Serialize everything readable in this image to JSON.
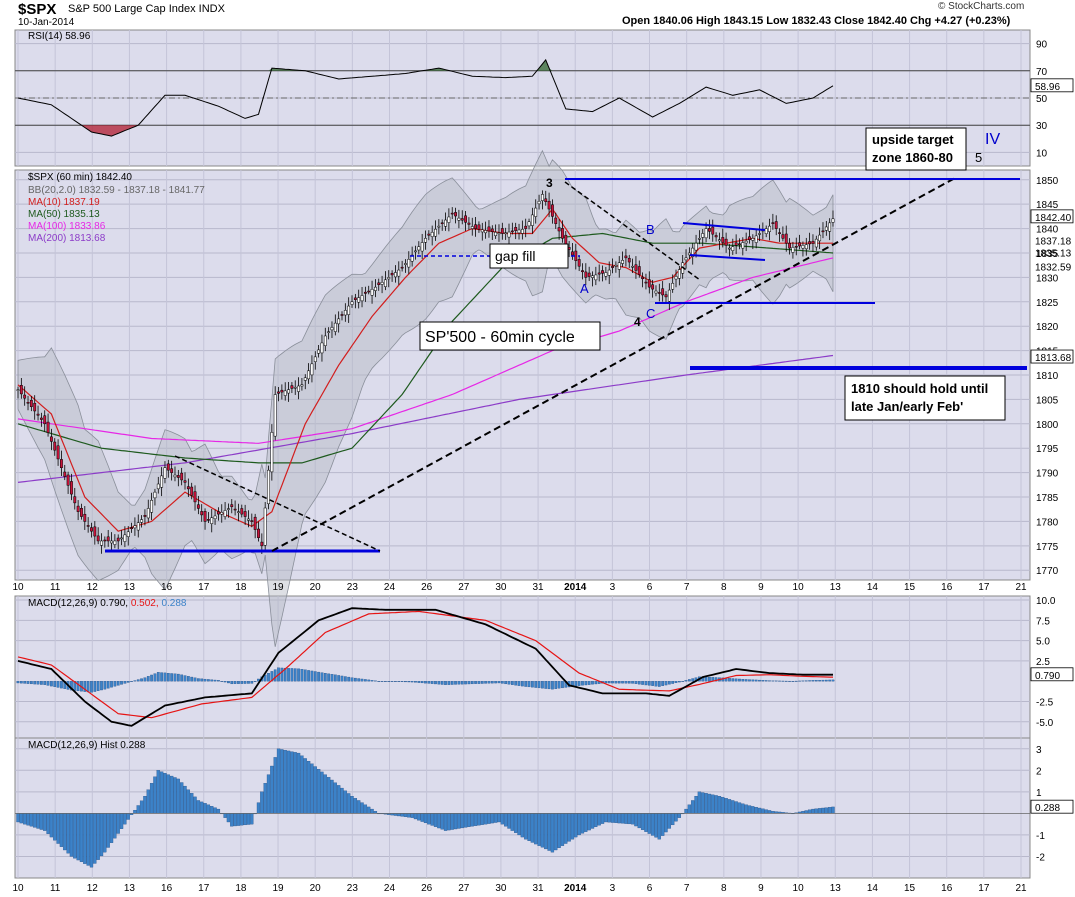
{
  "header": {
    "symbol": "$SPX",
    "description": "S&P 500 Large Cap Index  INDX",
    "date": "10-Jan-2014",
    "ohlc_text": "Open 1840.06  High 1843.15  Low 1832.43  Close 1842.40  Chg +4.27 (+0.23%)",
    "brand": "© StockCharts.com"
  },
  "colors": {
    "panel_bg": "#dcdcec",
    "up_candle": "#ffffff",
    "down_candle": "#c8143c",
    "ma10": "#d21e1e",
    "ma50": "#1e5a1e",
    "ma100": "#e628e6",
    "ma200": "#8c3cc8",
    "bb_fill": "#b4b9c3",
    "trendline": "#0000dd",
    "macd_line": "#000000",
    "signal_line": "#e61414",
    "histogram": "#3c82c8",
    "rsi_overbought_fill": "#3c6e3c",
    "rsi_oversold_fill": "#b4283c"
  },
  "legend": {
    "rsi": "RSI(14) 58.96",
    "price": "$SPX (60 min) 1842.40",
    "bb": "BB(20,2.0) 1832.59 - 1837.18 - 1841.77",
    "ma10": "MA(10) 1837.19",
    "ma50": "MA(50) 1835.13",
    "ma100": "MA(100) 1833.86",
    "ma200": "MA(200) 1813.68",
    "macd": "MACD(12,26,9) 0.790, 0.502, 0.288",
    "macd_a": "MACD(12,26,9) 0.790,",
    "macd_b": "0.502,",
    "macd_c": "0.288",
    "hist": "MACD(12,26,9) Hist 0.288"
  },
  "chart_data": {
    "type": "candlestick",
    "timeframe": "60 min",
    "x_tick_labels": [
      "10",
      "11",
      "12",
      "13",
      "16",
      "17",
      "18",
      "19",
      "20",
      "23",
      "24",
      "26",
      "27",
      "30",
      "31",
      "2014",
      "3",
      "6",
      "7",
      "8",
      "9",
      "10",
      "13",
      "14",
      "15",
      "16",
      "17",
      "21"
    ],
    "price_axis": {
      "ylim": [
        1768,
        1852
      ],
      "ticks": [
        1770,
        1775,
        1780,
        1785,
        1790,
        1795,
        1800,
        1805,
        1810,
        1815,
        1820,
        1825,
        1830,
        1835,
        1840,
        1845,
        1850
      ]
    },
    "price_last_labels": [
      "1842.40",
      "1837.18",
      "1835.13",
      "1832.59",
      "1813.68"
    ],
    "rsi_axis": {
      "ylim": [
        0,
        100
      ],
      "ticks": [
        10,
        30,
        50,
        70,
        90
      ],
      "last_label": "58.96"
    },
    "macd_axis": {
      "ylim": [
        -7,
        10.5
      ],
      "ticks": [
        10.0,
        7.5,
        5.0,
        2.5,
        -2.5,
        -5.0
      ],
      "last_label": "0.790"
    },
    "hist_axis": {
      "ylim": [
        -3,
        3.5
      ],
      "ticks": [
        3,
        2,
        1,
        -1,
        -2
      ],
      "last_label": "0.288"
    },
    "price_keypoints": [
      [
        0,
        1807
      ],
      [
        8,
        1800
      ],
      [
        18,
        1782
      ],
      [
        24,
        1776
      ],
      [
        30,
        1776
      ],
      [
        38,
        1781
      ],
      [
        44,
        1791
      ],
      [
        50,
        1788
      ],
      [
        56,
        1780
      ],
      [
        64,
        1783
      ],
      [
        70,
        1780
      ],
      [
        73,
        1775
      ],
      [
        77,
        1806
      ],
      [
        85,
        1808
      ],
      [
        92,
        1818
      ],
      [
        100,
        1825
      ],
      [
        107,
        1828
      ],
      [
        115,
        1832
      ],
      [
        122,
        1838
      ],
      [
        130,
        1843
      ],
      [
        137,
        1840
      ],
      [
        145,
        1839
      ],
      [
        152,
        1840
      ],
      [
        157,
        1847
      ],
      [
        163,
        1838
      ],
      [
        170,
        1830
      ],
      [
        176,
        1831
      ],
      [
        182,
        1834
      ],
      [
        189,
        1828
      ],
      [
        194,
        1826
      ],
      [
        199,
        1833
      ],
      [
        206,
        1840
      ],
      [
        213,
        1836
      ],
      [
        220,
        1838
      ],
      [
        226,
        1841
      ],
      [
        231,
        1836
      ],
      [
        238,
        1837
      ],
      [
        244,
        1842
      ]
    ],
    "ma10_keypoints": [
      [
        0,
        1808
      ],
      [
        10,
        1802
      ],
      [
        20,
        1785
      ],
      [
        30,
        1778
      ],
      [
        40,
        1780
      ],
      [
        50,
        1786
      ],
      [
        60,
        1782
      ],
      [
        70,
        1779
      ],
      [
        76,
        1782
      ],
      [
        86,
        1800
      ],
      [
        96,
        1812
      ],
      [
        106,
        1822
      ],
      [
        116,
        1830
      ],
      [
        126,
        1837
      ],
      [
        136,
        1840
      ],
      [
        146,
        1839
      ],
      [
        154,
        1839
      ],
      [
        160,
        1844
      ],
      [
        166,
        1838
      ],
      [
        174,
        1833
      ],
      [
        182,
        1832
      ],
      [
        190,
        1829
      ],
      [
        196,
        1830
      ],
      [
        204,
        1836
      ],
      [
        212,
        1837
      ],
      [
        220,
        1838
      ],
      [
        228,
        1837
      ],
      [
        236,
        1837
      ],
      [
        244,
        1837
      ]
    ],
    "ma50_keypoints": [
      [
        0,
        1800
      ],
      [
        25,
        1795
      ],
      [
        50,
        1793
      ],
      [
        72,
        1792
      ],
      [
        85,
        1792
      ],
      [
        100,
        1795
      ],
      [
        115,
        1806
      ],
      [
        130,
        1821
      ],
      [
        145,
        1832
      ],
      [
        160,
        1838
      ],
      [
        175,
        1839
      ],
      [
        190,
        1837
      ],
      [
        205,
        1837
      ],
      [
        225,
        1836
      ],
      [
        244,
        1835
      ]
    ],
    "ma100_keypoints": [
      [
        0,
        1801
      ],
      [
        40,
        1797
      ],
      [
        72,
        1796
      ],
      [
        100,
        1799
      ],
      [
        130,
        1806
      ],
      [
        160,
        1815
      ],
      [
        180,
        1819
      ],
      [
        200,
        1825
      ],
      [
        220,
        1830
      ],
      [
        244,
        1834
      ]
    ],
    "ma200_keypoints": [
      [
        0,
        1788
      ],
      [
        50,
        1792
      ],
      [
        100,
        1798
      ],
      [
        150,
        1805
      ],
      [
        200,
        1810
      ],
      [
        244,
        1814
      ]
    ],
    "rsi_keypoints": [
      [
        0,
        50
      ],
      [
        10,
        45
      ],
      [
        22,
        25
      ],
      [
        28,
        22
      ],
      [
        36,
        30
      ],
      [
        44,
        52
      ],
      [
        50,
        52
      ],
      [
        60,
        44
      ],
      [
        68,
        35
      ],
      [
        72,
        38
      ],
      [
        76,
        72
      ],
      [
        86,
        70
      ],
      [
        96,
        64
      ],
      [
        106,
        66
      ],
      [
        116,
        68
      ],
      [
        126,
        72
      ],
      [
        136,
        66
      ],
      [
        146,
        65
      ],
      [
        154,
        66
      ],
      [
        158,
        78
      ],
      [
        164,
        42
      ],
      [
        172,
        40
      ],
      [
        180,
        50
      ],
      [
        190,
        36
      ],
      [
        198,
        46
      ],
      [
        206,
        58
      ],
      [
        214,
        52
      ],
      [
        222,
        56
      ],
      [
        230,
        46
      ],
      [
        238,
        50
      ],
      [
        244,
        59
      ]
    ],
    "macd_keypoints": [
      [
        0,
        2.5
      ],
      [
        10,
        1.5
      ],
      [
        20,
        -2.5
      ],
      [
        28,
        -5.0
      ],
      [
        34,
        -5.5
      ],
      [
        44,
        -3.0
      ],
      [
        56,
        -2.0
      ],
      [
        70,
        -1.5
      ],
      [
        78,
        3.5
      ],
      [
        90,
        7.5
      ],
      [
        100,
        9.0
      ],
      [
        110,
        8.8
      ],
      [
        125,
        8.8
      ],
      [
        140,
        7.0
      ],
      [
        155,
        4.0
      ],
      [
        165,
        -0.5
      ],
      [
        175,
        -1.5
      ],
      [
        188,
        -1.5
      ],
      [
        195,
        -1.8
      ],
      [
        205,
        0.5
      ],
      [
        215,
        1.5
      ],
      [
        225,
        1.0
      ],
      [
        235,
        0.8
      ],
      [
        244,
        0.8
      ]
    ],
    "signal_keypoints": [
      [
        0,
        3.0
      ],
      [
        10,
        2.0
      ],
      [
        20,
        -1.0
      ],
      [
        30,
        -4.0
      ],
      [
        40,
        -4.5
      ],
      [
        55,
        -2.8
      ],
      [
        70,
        -2.0
      ],
      [
        80,
        1.5
      ],
      [
        92,
        6.0
      ],
      [
        105,
        8.3
      ],
      [
        120,
        8.6
      ],
      [
        140,
        7.5
      ],
      [
        155,
        5.0
      ],
      [
        168,
        1.0
      ],
      [
        180,
        -1.0
      ],
      [
        195,
        -1.2
      ],
      [
        205,
        -0.3
      ],
      [
        215,
        0.7
      ],
      [
        225,
        0.8
      ],
      [
        235,
        0.6
      ],
      [
        244,
        0.5
      ]
    ],
    "histogram_keypoints": [
      [
        0,
        -0.4
      ],
      [
        8,
        -0.8
      ],
      [
        16,
        -2.0
      ],
      [
        22,
        -2.5
      ],
      [
        26,
        -1.8
      ],
      [
        32,
        -0.5
      ],
      [
        38,
        0.8
      ],
      [
        42,
        2.0
      ],
      [
        48,
        1.6
      ],
      [
        54,
        0.6
      ],
      [
        60,
        0.2
      ],
      [
        64,
        -0.6
      ],
      [
        70,
        -0.5
      ],
      [
        73,
        1.0
      ],
      [
        78,
        3.0
      ],
      [
        84,
        2.8
      ],
      [
        92,
        1.8
      ],
      [
        100,
        0.8
      ],
      [
        108,
        0.0
      ],
      [
        118,
        -0.2
      ],
      [
        128,
        -0.8
      ],
      [
        136,
        -0.6
      ],
      [
        144,
        -0.4
      ],
      [
        152,
        -1.2
      ],
      [
        160,
        -1.8
      ],
      [
        168,
        -1.0
      ],
      [
        176,
        -0.4
      ],
      [
        184,
        -0.5
      ],
      [
        192,
        -1.2
      ],
      [
        198,
        -0.2
      ],
      [
        204,
        1.0
      ],
      [
        210,
        0.8
      ],
      [
        218,
        0.4
      ],
      [
        226,
        0.1
      ],
      [
        232,
        0.0
      ],
      [
        238,
        0.2
      ],
      [
        244,
        0.3
      ]
    ]
  },
  "annotations": {
    "gap_fill": "gap fill",
    "cycle": "SP'500 - 60min cycle",
    "upside_target": "upside target\nzone 1860-80",
    "hold_1810": "1810 should hold until\nlate Jan/early Feb'",
    "wave_labels": [
      "3",
      "A",
      "B",
      "C",
      "4",
      "5",
      "IV"
    ]
  }
}
